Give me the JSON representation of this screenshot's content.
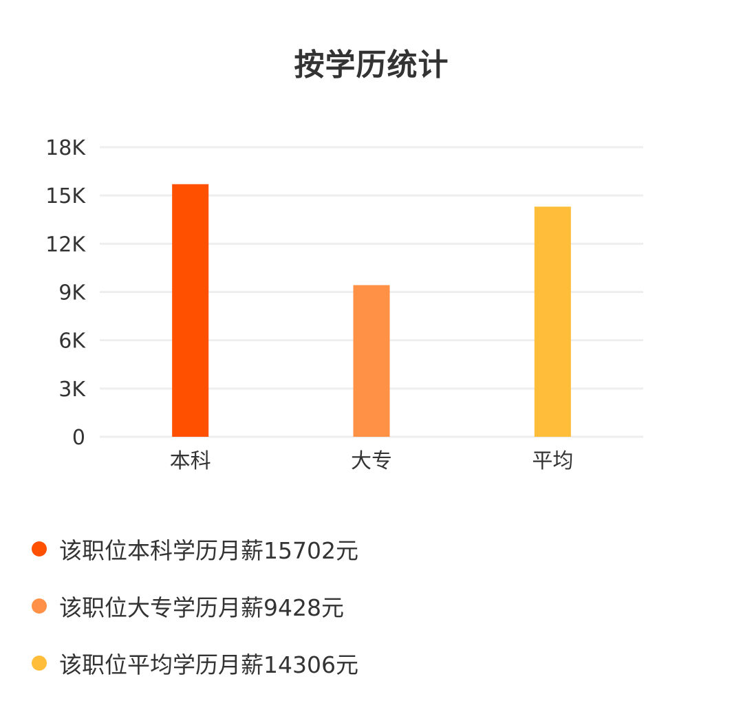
{
  "chart_data": {
    "type": "bar",
    "title": "按学历统计",
    "categories": [
      "本科",
      "大专",
      "平均"
    ],
    "values": [
      15702,
      9428,
      14306
    ],
    "colors": [
      "#ff5000",
      "#ff9146",
      "#ffbd3a"
    ],
    "ylim": [
      0,
      18000
    ],
    "yticks": [
      0,
      3000,
      6000,
      9000,
      12000,
      15000,
      18000
    ],
    "ytick_labels": [
      "0",
      "3K",
      "6K",
      "9K",
      "12K",
      "15K",
      "18K"
    ],
    "grid": true,
    "xlabel": "",
    "ylabel": ""
  },
  "legend": [
    {
      "text": "该职位本科学历月薪15702元",
      "color": "#ff5000"
    },
    {
      "text": "该职位大专学历月薪9428元",
      "color": "#ff9146"
    },
    {
      "text": "该职位平均学历月薪14306元",
      "color": "#ffbd3a"
    }
  ]
}
